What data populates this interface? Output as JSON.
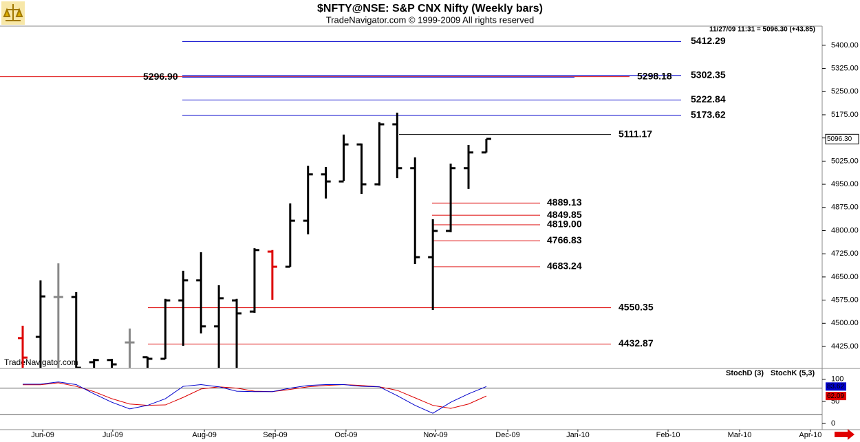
{
  "chart_data": {
    "type": "ohlc",
    "title": "$NFTY@NSE:  S&P CNX Nifty  (Weekly bars)",
    "subtitle": "TradeNavigator.com © 1999-2009 All rights reserved",
    "status": "11/27/09 11:31 = 5096.30 (+43.85)",
    "watermark": "TradeNavigator.com",
    "categories": [
      null,
      null,
      null,
      null,
      null,
      null,
      null,
      null,
      null,
      null,
      null,
      null,
      null,
      null,
      null,
      null,
      null,
      null,
      null,
      null,
      null,
      null,
      null,
      null,
      null,
      null,
      null
    ],
    "open": [
      4452,
      4456,
      4585,
      4585,
      4374,
      4381,
      4438,
      4390,
      4385,
      4574,
      4639,
      4490,
      4574,
      4538,
      4732,
      4683,
      4832,
      4982,
      4959,
      5079,
      4950,
      5144,
      5002,
      4714,
      4799,
      5002,
      5053
    ],
    "high": [
      4492,
      4639,
      4694,
      4601,
      4385,
      4385,
      4483,
      4392,
      4579,
      4670,
      4730,
      4623,
      4579,
      4743,
      4737,
      4888,
      5010,
      5006,
      5111,
      5082,
      5151,
      5182,
      5037,
      4837,
      5017,
      5077,
      5097
    ],
    "low": [
      4345,
      4345,
      4345,
      4345,
      4345,
      4345,
      4345,
      4345,
      4385,
      4427,
      4467,
      4345,
      4345,
      4534,
      4576,
      4683,
      4788,
      4904,
      4961,
      4919,
      4946,
      4970,
      4692,
      4543,
      4795,
      4935,
      5053
    ],
    "close": [
      4389,
      4587,
      4585,
      4356,
      4381,
      4367,
      4438,
      4385,
      4574,
      4639,
      4490,
      4581,
      4532,
      4737,
      4683,
      4832,
      4982,
      4959,
      5079,
      4950,
      5144,
      5002,
      4714,
      4799,
      5002,
      5053,
      5097
    ],
    "bar_colors": [
      "#dd0000",
      "#000000",
      "#888888",
      "#000000",
      "#000000",
      "#000000",
      "#888888",
      "#000000",
      "#000000",
      "#000000",
      "#000000",
      "#000000",
      "#000000",
      "#000000",
      "#dd0000",
      "#000000",
      "#000000",
      "#000000",
      "#000000",
      "#000000",
      "#000000",
      "#000000",
      "#000000",
      "#000000",
      "#000000",
      "#000000",
      "#000000"
    ],
    "last_price": {
      "value": 5096.3,
      "label": "5096.30"
    },
    "ylim": [
      4356,
      5462
    ],
    "yticks": [
      {
        "value": 4425,
        "label": "4425.00"
      },
      {
        "value": 4500,
        "label": "4500.00"
      },
      {
        "value": 4575,
        "label": "4575.00"
      },
      {
        "value": 4650,
        "label": "4650.00"
      },
      {
        "value": 4725,
        "label": "4725.00"
      },
      {
        "value": 4800,
        "label": "4800.00"
      },
      {
        "value": 4875,
        "label": "4875.00"
      },
      {
        "value": 4950,
        "label": "4950.00"
      },
      {
        "value": 5025,
        "label": "5025.00"
      },
      {
        "value": 5100,
        "label": "5100.00"
      },
      {
        "value": 5175,
        "label": "5175.00"
      },
      {
        "value": 5250,
        "label": "5250.00"
      },
      {
        "value": 5325,
        "label": "5325.00"
      },
      {
        "value": 5400,
        "label": "5400.00"
      }
    ],
    "xlim": [
      -1.273,
      44.83
    ],
    "xticks": [
      {
        "value": 1.12,
        "label": "Jun-09"
      },
      {
        "value": 5.05,
        "label": "Jul-09"
      },
      {
        "value": 10.19,
        "label": "Aug-09"
      },
      {
        "value": 14.16,
        "label": "Sep-09"
      },
      {
        "value": 18.13,
        "label": "Oct-09"
      },
      {
        "value": 23.15,
        "label": "Nov-09"
      },
      {
        "value": 27.2,
        "label": "Dec-09"
      },
      {
        "value": 31.13,
        "label": "Jan-10"
      },
      {
        "value": 36.19,
        "label": "Feb-10"
      },
      {
        "value": 40.2,
        "label": "Mar-10"
      },
      {
        "value": 44.17,
        "label": "Apr-10"
      }
    ],
    "levels": [
      {
        "value": 5412.29,
        "label": "5412.29",
        "color": "#0000cc"
      },
      {
        "value": 5302.35,
        "label": "5302.35",
        "color": "#0000cc"
      },
      {
        "value": 5298.18,
        "label": "5298.18",
        "color": "#dd0000"
      },
      {
        "value": 5296.9,
        "label": "5296.90",
        "color": "#0000cc"
      },
      {
        "value": 5222.84,
        "label": "5222.84",
        "color": "#0000cc"
      },
      {
        "value": 5173.62,
        "label": "5173.62",
        "color": "#0000cc"
      },
      {
        "value": 5111.17,
        "label": "5111.17",
        "color": "#000000"
      },
      {
        "value": 4889.13,
        "label": "4889.13",
        "color": "#dd0000"
      },
      {
        "value": 4849.85,
        "label": "4849.85",
        "color": "#dd0000"
      },
      {
        "value": 4819,
        "label": "4819.00",
        "color": "#dd0000"
      },
      {
        "value": 4766.83,
        "label": "4766.83",
        "color": "#dd0000"
      },
      {
        "value": 4683.24,
        "label": "4683.24",
        "color": "#dd0000"
      },
      {
        "value": 4550.35,
        "label": "4550.35",
        "color": "#dd0000"
      },
      {
        "value": 4432.87,
        "label": "4432.87",
        "color": "#dd0000"
      }
    ],
    "indicator": {
      "ylim": [
        -14,
        123
      ],
      "yticks": [
        0,
        50,
        100
      ],
      "reference_lines": [
        20,
        80
      ],
      "series": [
        {
          "name": "StochD (3)",
          "color": "#dd0000",
          "last_label": "62.09",
          "values": [
            87.5,
            87.5,
            92,
            84,
            72,
            56,
            44,
            41,
            42,
            59,
            78,
            83,
            80,
            73,
            72,
            77,
            83,
            86,
            88,
            86,
            83,
            75,
            58,
            41,
            34,
            44,
            62.09
          ]
        },
        {
          "name": "StochK (5,3)",
          "color": "#0000cc",
          "last_label": "83.62",
          "values": [
            89,
            89,
            94,
            88,
            67,
            48,
            33,
            41,
            56,
            84,
            88,
            83,
            73,
            72,
            72,
            80,
            86,
            88,
            88,
            84,
            83,
            63,
            41,
            23,
            48,
            67,
            83.62
          ]
        }
      ]
    }
  }
}
